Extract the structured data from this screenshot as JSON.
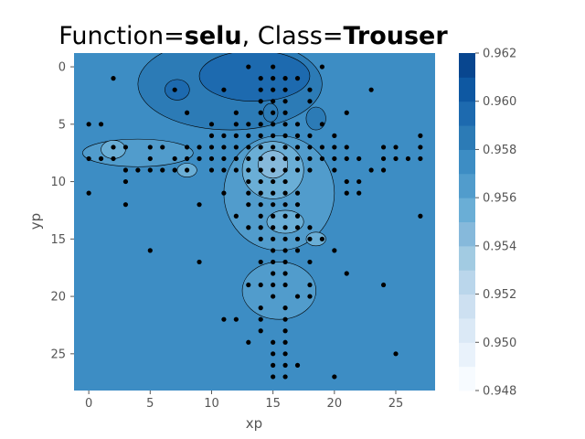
{
  "chart_data": {
    "type": "contour",
    "title": {
      "prefix": "Function=",
      "function": "selu",
      "middle": ", Class=",
      "class": "Trouser"
    },
    "xlabel": "xp",
    "ylabel": "yp",
    "xlim": [
      -1.2,
      28.2
    ],
    "ylim": [
      28.2,
      -1.2
    ],
    "y_inverted": true,
    "xticks": [
      0,
      5,
      10,
      15,
      20,
      25
    ],
    "yticks": [
      0,
      5,
      10,
      15,
      20,
      25
    ],
    "colorbar": {
      "min": 0.948,
      "max": 0.962,
      "levels": [
        0.948,
        0.949,
        0.95,
        0.951,
        0.952,
        0.953,
        0.954,
        0.955,
        0.956,
        0.957,
        0.958,
        0.959,
        0.96,
        0.961,
        0.962
      ],
      "tick_labels": [
        "0.962",
        "0.960",
        "0.958",
        "0.956",
        "0.954",
        "0.952",
        "0.950",
        "0.948"
      ],
      "tick_values": [
        0.962,
        0.96,
        0.958,
        0.956,
        0.954,
        0.952,
        0.95,
        0.948
      ],
      "colors": [
        "#f7fbff",
        "#e9f2fb",
        "#dbe9f6",
        "#cde0f1",
        "#bad6eb",
        "#a2cbe2",
        "#86b9db",
        "#6aaed6",
        "#519ccc",
        "#3d8dc4",
        "#2c7bb6",
        "#1d6aaf",
        "#0e58a2",
        "#08468f",
        "#08306b"
      ]
    },
    "background_value": 0.9565,
    "regions": [
      {
        "level": 0.9575,
        "cx": 11.5,
        "cy": 1.5,
        "rx": 7.5,
        "ry": 4.0
      },
      {
        "level": 0.9585,
        "cx": 13.5,
        "cy": 0.8,
        "rx": 4.5,
        "ry": 2.2
      },
      {
        "level": 0.9585,
        "cx": 7.2,
        "cy": 2.0,
        "rx": 1.0,
        "ry": 0.9
      },
      {
        "level": 0.9555,
        "cx": 4.0,
        "cy": 7.5,
        "rx": 4.5,
        "ry": 1.2
      },
      {
        "level": 0.9545,
        "cx": 2.0,
        "cy": 7.2,
        "rx": 1.0,
        "ry": 0.8
      },
      {
        "level": 0.9555,
        "cx": 15.5,
        "cy": 11.0,
        "rx": 4.5,
        "ry": 5.0
      },
      {
        "level": 0.9555,
        "cx": 15.5,
        "cy": 19.5,
        "rx": 3.0,
        "ry": 2.5
      },
      {
        "level": 0.9545,
        "cx": 15.0,
        "cy": 9.0,
        "rx": 2.5,
        "ry": 2.5
      },
      {
        "level": 0.9535,
        "cx": 15.0,
        "cy": 8.5,
        "rx": 1.2,
        "ry": 1.2
      },
      {
        "level": 0.9545,
        "cx": 16.0,
        "cy": 13.5,
        "rx": 1.5,
        "ry": 1.0
      },
      {
        "level": 0.9545,
        "cx": 18.5,
        "cy": 15.0,
        "rx": 0.8,
        "ry": 0.6
      },
      {
        "level": 0.9545,
        "cx": 8.0,
        "cy": 9.0,
        "rx": 0.8,
        "ry": 0.6
      },
      {
        "level": 0.9575,
        "cx": 14.8,
        "cy": 4.0,
        "rx": 0.6,
        "ry": 0.8
      },
      {
        "level": 0.9575,
        "cx": 18.5,
        "cy": 4.5,
        "rx": 0.8,
        "ry": 1.0
      }
    ],
    "points": [
      [
        13,
        0
      ],
      [
        15,
        0
      ],
      [
        19,
        0
      ],
      [
        2,
        1
      ],
      [
        14,
        1
      ],
      [
        15,
        1
      ],
      [
        16,
        1
      ],
      [
        17,
        1
      ],
      [
        7,
        2
      ],
      [
        11,
        2
      ],
      [
        14,
        2
      ],
      [
        15,
        2
      ],
      [
        16,
        2
      ],
      [
        18,
        2
      ],
      [
        23,
        2
      ],
      [
        14,
        3
      ],
      [
        15,
        3
      ],
      [
        16,
        3
      ],
      [
        18,
        3
      ],
      [
        8,
        4
      ],
      [
        12,
        4
      ],
      [
        14,
        4
      ],
      [
        15,
        4
      ],
      [
        16,
        4
      ],
      [
        21,
        4
      ],
      [
        0,
        5
      ],
      [
        1,
        5
      ],
      [
        10,
        5
      ],
      [
        12,
        5
      ],
      [
        13,
        5
      ],
      [
        14,
        5
      ],
      [
        15,
        5
      ],
      [
        16,
        5
      ],
      [
        17,
        5
      ],
      [
        19,
        5
      ],
      [
        10,
        6
      ],
      [
        11,
        6
      ],
      [
        12,
        6
      ],
      [
        13,
        6
      ],
      [
        14,
        6
      ],
      [
        15,
        6
      ],
      [
        16,
        6
      ],
      [
        17,
        6
      ],
      [
        18,
        6
      ],
      [
        20,
        6
      ],
      [
        27,
        6
      ],
      [
        2,
        7
      ],
      [
        3,
        7
      ],
      [
        5,
        7
      ],
      [
        6,
        7
      ],
      [
        8,
        7
      ],
      [
        9,
        7
      ],
      [
        10,
        7
      ],
      [
        11,
        7
      ],
      [
        12,
        7
      ],
      [
        13,
        7
      ],
      [
        14,
        7
      ],
      [
        15,
        7
      ],
      [
        16,
        7
      ],
      [
        17,
        7
      ],
      [
        18,
        7
      ],
      [
        19,
        7
      ],
      [
        20,
        7
      ],
      [
        21,
        7
      ],
      [
        24,
        7
      ],
      [
        25,
        7
      ],
      [
        27,
        7
      ],
      [
        0,
        8
      ],
      [
        1,
        8
      ],
      [
        2,
        8
      ],
      [
        5,
        8
      ],
      [
        7,
        8
      ],
      [
        8,
        8
      ],
      [
        9,
        8
      ],
      [
        10,
        8
      ],
      [
        11,
        8
      ],
      [
        12,
        8
      ],
      [
        13,
        8
      ],
      [
        14,
        8
      ],
      [
        15,
        8
      ],
      [
        16,
        8
      ],
      [
        17,
        8
      ],
      [
        18,
        8
      ],
      [
        19,
        8
      ],
      [
        20,
        8
      ],
      [
        21,
        8
      ],
      [
        22,
        8
      ],
      [
        24,
        8
      ],
      [
        25,
        8
      ],
      [
        26,
        8
      ],
      [
        27,
        8
      ],
      [
        3,
        9
      ],
      [
        4,
        9
      ],
      [
        5,
        9
      ],
      [
        6,
        9
      ],
      [
        7,
        9
      ],
      [
        8,
        9
      ],
      [
        10,
        9
      ],
      [
        11,
        9
      ],
      [
        12,
        9
      ],
      [
        13,
        9
      ],
      [
        14,
        9
      ],
      [
        15,
        9
      ],
      [
        16,
        9
      ],
      [
        17,
        9
      ],
      [
        18,
        9
      ],
      [
        20,
        9
      ],
      [
        23,
        9
      ],
      [
        24,
        9
      ],
      [
        3,
        10
      ],
      [
        13,
        10
      ],
      [
        14,
        10
      ],
      [
        15,
        10
      ],
      [
        16,
        10
      ],
      [
        21,
        10
      ],
      [
        22,
        10
      ],
      [
        0,
        11
      ],
      [
        11,
        11
      ],
      [
        13,
        11
      ],
      [
        14,
        11
      ],
      [
        15,
        11
      ],
      [
        16,
        11
      ],
      [
        17,
        11
      ],
      [
        21,
        11
      ],
      [
        22,
        11
      ],
      [
        3,
        12
      ],
      [
        9,
        12
      ],
      [
        13,
        12
      ],
      [
        14,
        12
      ],
      [
        15,
        12
      ],
      [
        16,
        12
      ],
      [
        17,
        12
      ],
      [
        12,
        13
      ],
      [
        14,
        13
      ],
      [
        15,
        13
      ],
      [
        16,
        13
      ],
      [
        17,
        13
      ],
      [
        27,
        13
      ],
      [
        13,
        14
      ],
      [
        14,
        14
      ],
      [
        15,
        14
      ],
      [
        16,
        14
      ],
      [
        17,
        14
      ],
      [
        18,
        14
      ],
      [
        14,
        15
      ],
      [
        15,
        15
      ],
      [
        16,
        15
      ],
      [
        17,
        15
      ],
      [
        18,
        15
      ],
      [
        19,
        15
      ],
      [
        5,
        16
      ],
      [
        15,
        16
      ],
      [
        16,
        16
      ],
      [
        17,
        16
      ],
      [
        20,
        16
      ],
      [
        9,
        17
      ],
      [
        14,
        17
      ],
      [
        15,
        17
      ],
      [
        16,
        17
      ],
      [
        18,
        17
      ],
      [
        15,
        18
      ],
      [
        16,
        18
      ],
      [
        21,
        18
      ],
      [
        13,
        19
      ],
      [
        14,
        19
      ],
      [
        15,
        19
      ],
      [
        16,
        19
      ],
      [
        18,
        19
      ],
      [
        24,
        19
      ],
      [
        15,
        20
      ],
      [
        17,
        20
      ],
      [
        18,
        20
      ],
      [
        14,
        21
      ],
      [
        16,
        21
      ],
      [
        11,
        22
      ],
      [
        12,
        22
      ],
      [
        14,
        22
      ],
      [
        16,
        22
      ],
      [
        14,
        23
      ],
      [
        16,
        23
      ],
      [
        13,
        24
      ],
      [
        15,
        24
      ],
      [
        16,
        24
      ],
      [
        15,
        25
      ],
      [
        16,
        25
      ],
      [
        25,
        25
      ],
      [
        15,
        26
      ],
      [
        16,
        26
      ],
      [
        17,
        26
      ],
      [
        15,
        27
      ],
      [
        16,
        27
      ],
      [
        20,
        27
      ]
    ]
  }
}
